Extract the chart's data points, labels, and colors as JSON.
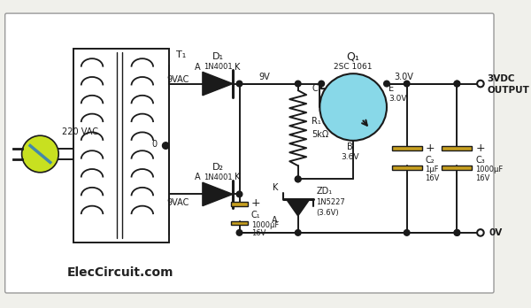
{
  "bg_color": "#f0f0eb",
  "line_color": "#1a1a1a",
  "watermark": "ElecCircuit.com",
  "output_label": "3VDC\nOUTPUT",
  "zero_v_label": "0V",
  "plug_color": "#c8e020",
  "transistor_fill": "#88d8e8",
  "cap_fill": "#c8a020",
  "fig_w": 6.0,
  "fig_h": 3.48
}
